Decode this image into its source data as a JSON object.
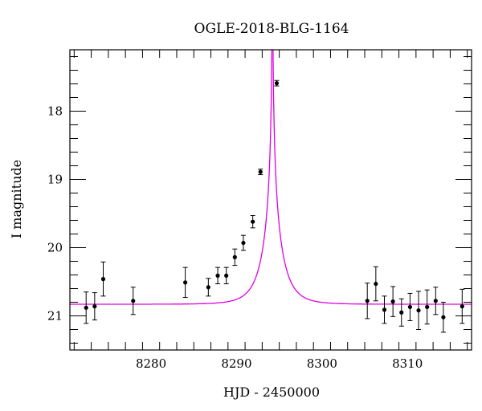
{
  "chart_data": {
    "type": "scatter",
    "title": "OGLE-2018-BLG-1164",
    "xlabel": "HJD - 2450000",
    "ylabel": "I magnitude",
    "xlim": [
      8270.5,
      8317.5
    ],
    "ylim": [
      21.5,
      17.1
    ],
    "y_inverted": true,
    "x_ticks": [
      8280,
      8290,
      8300,
      8310
    ],
    "y_ticks": [
      18,
      19,
      20,
      21
    ],
    "x_tick_labels": [
      "8280",
      "8290",
      "8300",
      "8310"
    ],
    "y_tick_labels": [
      "18",
      "19",
      "20",
      "21"
    ],
    "grid": false,
    "model_color": "#e000e0",
    "point_color": "#000000",
    "model": {
      "baseline": 20.83,
      "peak_time": 8294.2,
      "effective_timescale": 2.2
    },
    "series": [
      {
        "points": [
          {
            "x": 8272.4,
            "y": 20.88,
            "err": 0.23
          },
          {
            "x": 8273.4,
            "y": 20.86,
            "err": 0.2
          },
          {
            "x": 8274.4,
            "y": 20.46,
            "err": 0.25
          },
          {
            "x": 8277.9,
            "y": 20.78,
            "err": 0.2
          },
          {
            "x": 8284.0,
            "y": 20.51,
            "err": 0.22
          },
          {
            "x": 8286.7,
            "y": 20.58,
            "err": 0.13
          },
          {
            "x": 8287.8,
            "y": 20.41,
            "err": 0.12
          },
          {
            "x": 8288.8,
            "y": 20.41,
            "err": 0.12
          },
          {
            "x": 8289.8,
            "y": 20.14,
            "err": 0.12
          },
          {
            "x": 8290.8,
            "y": 19.93,
            "err": 0.11
          },
          {
            "x": 8291.9,
            "y": 19.62,
            "err": 0.09
          },
          {
            "x": 8292.8,
            "y": 18.89,
            "err": 0.04
          },
          {
            "x": 8294.7,
            "y": 17.59,
            "err": 0.04
          },
          {
            "x": 8305.3,
            "y": 20.78,
            "err": 0.26
          },
          {
            "x": 8306.3,
            "y": 20.53,
            "err": 0.25
          },
          {
            "x": 8307.3,
            "y": 20.91,
            "err": 0.2
          },
          {
            "x": 8308.3,
            "y": 20.79,
            "err": 0.22
          },
          {
            "x": 8309.3,
            "y": 20.95,
            "err": 0.2
          },
          {
            "x": 8310.3,
            "y": 20.87,
            "err": 0.2
          },
          {
            "x": 8311.3,
            "y": 20.92,
            "err": 0.28
          },
          {
            "x": 8312.3,
            "y": 20.87,
            "err": 0.25
          },
          {
            "x": 8313.3,
            "y": 20.78,
            "err": 0.2
          },
          {
            "x": 8314.2,
            "y": 21.02,
            "err": 0.22
          },
          {
            "x": 8316.4,
            "y": 20.86,
            "err": 0.25
          }
        ]
      }
    ]
  }
}
